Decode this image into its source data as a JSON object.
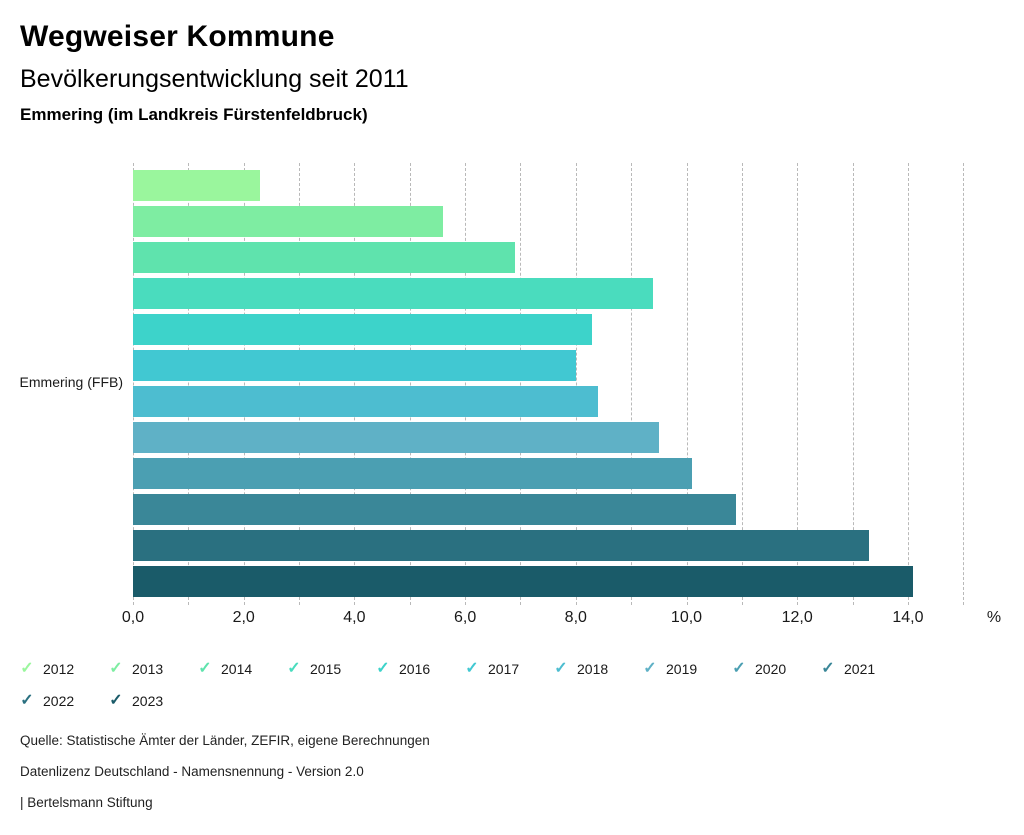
{
  "header": {
    "title": "Wegweiser Kommune",
    "subtitle": "Bevölkerungsentwicklung seit 2011",
    "region_line": "Emmering (im Landkreis Fürstenfeldbruck)"
  },
  "icons": {
    "legend_check": "✓"
  },
  "chart_data": {
    "type": "bar",
    "orientation": "horizontal",
    "title": "Bevölkerungsentwicklung seit 2011",
    "group_label": "Emmering (FFB)",
    "categories": [
      "2012",
      "2013",
      "2014",
      "2015",
      "2016",
      "2017",
      "2018",
      "2019",
      "2020",
      "2021",
      "2022",
      "2023"
    ],
    "values": [
      2.3,
      5.6,
      6.9,
      9.4,
      8.3,
      8.0,
      8.4,
      9.5,
      10.1,
      10.9,
      13.3,
      14.1
    ],
    "value_unit": "%",
    "colors": [
      "#9af69d",
      "#7eeda2",
      "#5fe3ad",
      "#4adcbe",
      "#3dd3ca",
      "#41c8d2",
      "#4dbdd0",
      "#5fb1c6",
      "#4b9fb2",
      "#3a8798",
      "#2a7080",
      "#1a5b69"
    ],
    "xlim": [
      0,
      15
    ],
    "gridline_step": 1,
    "grid": "vertical-dashed",
    "x_tick_values": [
      0,
      2,
      4,
      6,
      8,
      10,
      12,
      14
    ],
    "x_tick_labels": [
      "0,0",
      "2,0",
      "4,0",
      "6,0",
      "8,0",
      "10,0",
      "12,0",
      "14,0"
    ],
    "x_axis_unit_label": "%",
    "legend_position": "bottom",
    "legend_per_row": 10
  },
  "footer": {
    "lines": [
      "Quelle: Statistische Ämter der Länder, ZEFIR, eigene Berechnungen",
      "Datenlizenz Deutschland - Namensnennung - Version 2.0",
      "| Bertelsmann Stiftung"
    ]
  }
}
